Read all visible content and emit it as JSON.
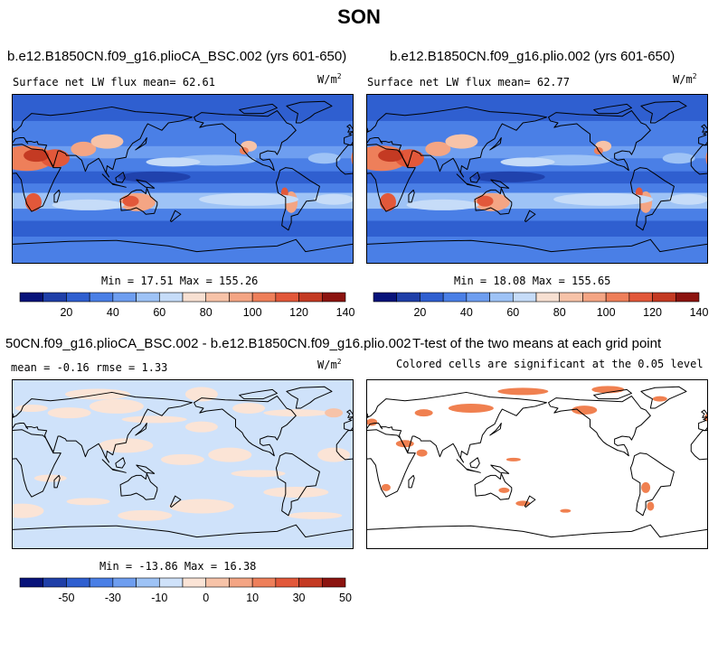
{
  "page_title": "SON",
  "panels": [
    {
      "title": "b.e12.B1850CN.f09_g16.plioCA_BSC.002 (yrs 601-650)",
      "left_text": "Surface net LW flux mean=  62.61",
      "units": "W/m2",
      "min_max": "Min =  17.51 Max = 155.26",
      "map_kind": "flux"
    },
    {
      "title": "b.e12.B1850CN.f09_g16.plio.002 (yrs 601-650)",
      "left_text": "Surface net LW flux mean=  62.77",
      "units": "W/m2",
      "min_max": "Min =  18.08 Max = 155.65",
      "map_kind": "flux"
    },
    {
      "title": "50CN.f09_g16.plioCA_BSC.002 - b.e12.B1850CN.f09_g16.plio.002",
      "left_text": "mean =  -0.16    rmse =    1.33",
      "units": "W/m2",
      "min_max": "Min = -13.86 Max =  16.38",
      "map_kind": "diff"
    },
    {
      "title": "T-test of the two means at each grid point",
      "subtitle": "Colored cells are significant at the 0.05 level",
      "map_kind": "ttest"
    }
  ],
  "colorbars": [
    {
      "labels": [
        "20",
        "40",
        "60",
        "80",
        "100",
        "120",
        "140"
      ],
      "colors": [
        "#08137a",
        "#1f3fa8",
        "#2f5fd0",
        "#4a7fe6",
        "#6e9ef0",
        "#9ec3f6",
        "#c6dcf8",
        "#f7e0d2",
        "#f7c3a8",
        "#f4a584",
        "#ee7f5a",
        "#e2583a",
        "#c43a23",
        "#8c1410"
      ]
    },
    {
      "labels": [
        "20",
        "40",
        "60",
        "80",
        "100",
        "120",
        "140"
      ],
      "colors": [
        "#08137a",
        "#1f3fa8",
        "#2f5fd0",
        "#4a7fe6",
        "#6e9ef0",
        "#9ec3f6",
        "#c6dcf8",
        "#f7e0d2",
        "#f7c3a8",
        "#f4a584",
        "#ee7f5a",
        "#e2583a",
        "#c43a23",
        "#8c1410"
      ]
    },
    {
      "labels": [
        "-50",
        "-30",
        "-10",
        "0",
        "10",
        "30",
        "50"
      ],
      "colors": [
        "#08137a",
        "#1f3fa8",
        "#2f5fd0",
        "#4a7fe6",
        "#6e9ef0",
        "#9ec3f6",
        "#cfe2fa",
        "#fbe4d6",
        "#f7c3a8",
        "#f4a584",
        "#ee7f5a",
        "#e2583a",
        "#c43a23",
        "#8c1410"
      ]
    }
  ]
}
